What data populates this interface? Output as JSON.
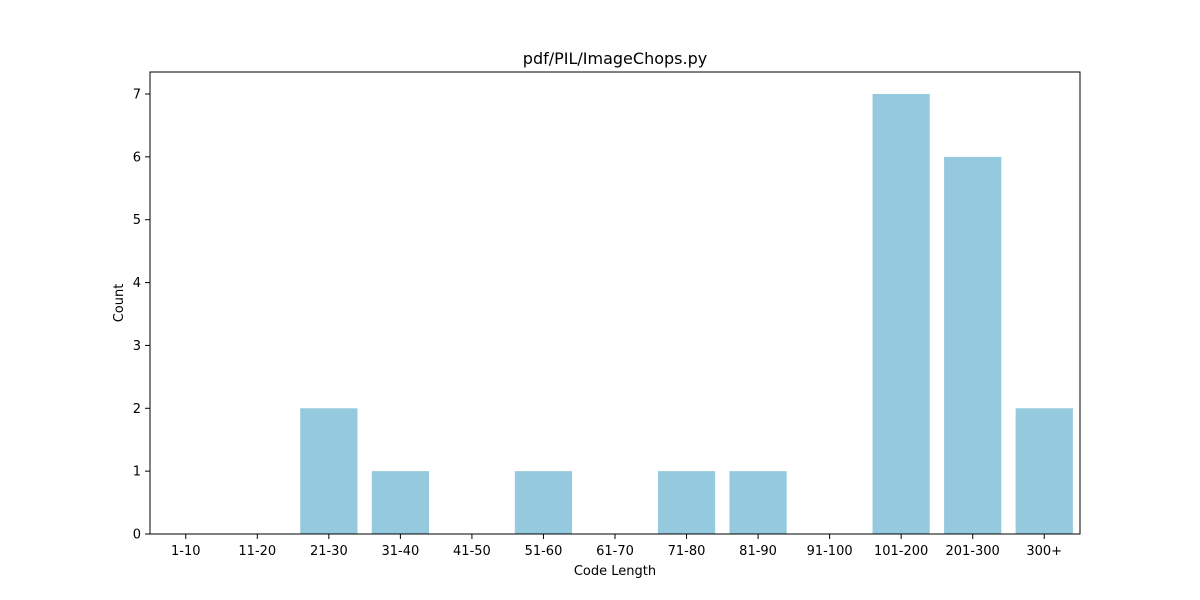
{
  "chart_data": {
    "type": "bar",
    "title": "pdf/PIL/ImageChops.py",
    "xlabel": "Code Length",
    "ylabel": "Count",
    "categories": [
      "1-10",
      "11-20",
      "21-30",
      "31-40",
      "41-50",
      "51-60",
      "61-70",
      "71-80",
      "81-90",
      "91-100",
      "101-200",
      "201-300",
      "300+"
    ],
    "values": [
      0,
      0,
      2,
      1,
      0,
      1,
      0,
      1,
      1,
      0,
      7,
      6,
      2
    ],
    "ylim": [
      0,
      7.35
    ],
    "yticks": [
      0,
      1,
      2,
      3,
      4,
      5,
      6,
      7
    ],
    "bar_color": "#95c9de",
    "grid": false,
    "legend": false
  }
}
